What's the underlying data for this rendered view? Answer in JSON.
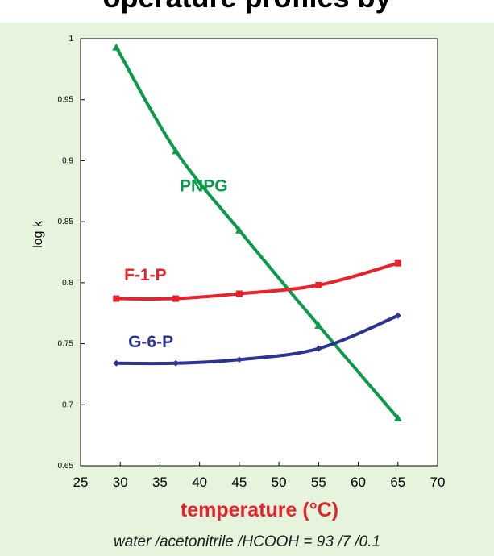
{
  "header": {
    "title": "operature profiles by"
  },
  "chart_data": {
    "type": "line",
    "xlabel": "temperature (°C)",
    "ylabel": "log k",
    "xlim": [
      25,
      70
    ],
    "ylim": [
      0.65,
      1
    ],
    "x_ticks": [
      "25",
      "30",
      "35",
      "40",
      "45",
      "50",
      "55",
      "60",
      "65",
      "70"
    ],
    "y_ticks": [
      "0.65",
      "0.7",
      "0.75",
      "0.8",
      "0.85",
      "0.9",
      "0.95",
      "1"
    ],
    "grid": false,
    "legend": "inline labels",
    "series": [
      {
        "name": "PNPG",
        "color": "#0a9a4a",
        "marker": "triangle",
        "x": [
          29.5,
          37,
          45,
          55,
          65
        ],
        "y": [
          0.993,
          0.908,
          0.843,
          0.765,
          0.689
        ]
      },
      {
        "name": "F-1-P",
        "color": "#e8222a",
        "marker": "square",
        "x": [
          29.5,
          37,
          45,
          55,
          65
        ],
        "y": [
          0.787,
          0.787,
          0.791,
          0.798,
          0.816
        ]
      },
      {
        "name": "G-6-P",
        "color": "#2b3490",
        "marker": "diamond",
        "x": [
          29.5,
          37,
          45,
          55,
          65
        ],
        "y": [
          0.734,
          0.734,
          0.737,
          0.746,
          0.773
        ]
      }
    ]
  },
  "caption": "water /acetonitrile /HCOOH = 93 /7 /0.1"
}
